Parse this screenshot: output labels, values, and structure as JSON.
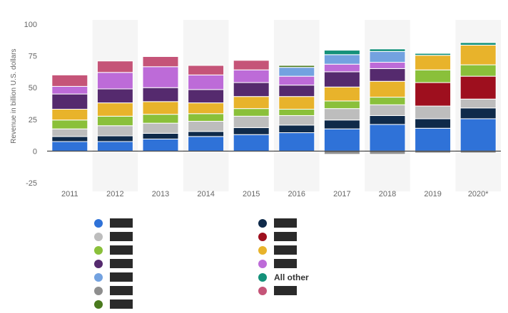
{
  "chart_data": {
    "type": "bar",
    "stacked": true,
    "title": "",
    "xlabel": "",
    "ylabel": "Revenue in billion U.S. dollars",
    "ylim": [
      -25,
      100
    ],
    "yticks": [
      100,
      75,
      50,
      25,
      0,
      -25
    ],
    "grid": false,
    "legend_position": "bottom",
    "categories": [
      "2011",
      "2012",
      "2013",
      "2014",
      "2015",
      "2016",
      "2017",
      "2018",
      "2019",
      "2020*"
    ],
    "series": [
      {
        "name": "",
        "color": "#2f72d8",
        "values": [
          7.5,
          7.5,
          9.5,
          11.5,
          13,
          14.5,
          17.5,
          21,
          18,
          25.5
        ]
      },
      {
        "name": "",
        "color": "#0f2a4a",
        "values": [
          4,
          4.5,
          4.5,
          4,
          5.5,
          6,
          7,
          7,
          7.5,
          8.5
        ]
      },
      {
        "name": "",
        "color": "#bdbdbd",
        "values": [
          6,
          8,
          8,
          8,
          9,
          7.5,
          9,
          8.5,
          10,
          7
        ]
      },
      {
        "name": "",
        "color": "#8ac03a",
        "values": [
          7,
          7.5,
          7,
          6,
          6,
          5,
          6,
          6,
          0,
          0
        ]
      },
      {
        "name": "",
        "color": "#e8b32b",
        "values": [
          8.5,
          10.5,
          10,
          8.5,
          9.5,
          10,
          11,
          12.5,
          0,
          0
        ]
      },
      {
        "name": "",
        "color": "#9e0f1e",
        "values": [
          0,
          0,
          0,
          0,
          0,
          0,
          0,
          0,
          18.5,
          18
        ]
      },
      {
        "name": "",
        "color": "#8ac03a",
        "values": [
          0,
          0,
          0,
          0,
          0,
          0,
          0,
          0,
          10,
          9
        ]
      },
      {
        "name": "",
        "color": "#e8b32b",
        "values": [
          0,
          0,
          0,
          0,
          0,
          0,
          0,
          0,
          11.5,
          15.5
        ]
      },
      {
        "name": "",
        "color": "#552a6e",
        "values": [
          12,
          11,
          11,
          10.5,
          11,
          9,
          12,
          10,
          0,
          0
        ]
      },
      {
        "name": "",
        "color": "#bd6bd8",
        "values": [
          6,
          13,
          16.5,
          11.5,
          10,
          7,
          6,
          5,
          0,
          0
        ]
      },
      {
        "name": "",
        "color": "#73a2e0",
        "values": [
          0,
          0,
          0,
          0,
          0,
          7,
          7.5,
          8.5,
          0,
          0
        ]
      },
      {
        "name": "",
        "color": "#4a7a1e",
        "values": [
          0,
          0,
          0,
          0,
          0,
          1.5,
          0,
          0,
          0,
          0
        ]
      },
      {
        "name": "All other",
        "color": "#14917a",
        "values": [
          0,
          0,
          0,
          0,
          0,
          0,
          3.5,
          2,
          1.5,
          2
        ]
      },
      {
        "name": "",
        "color": "#c55478",
        "values": [
          9,
          9,
          8,
          7.5,
          7.5,
          0,
          0,
          0,
          0,
          0
        ]
      },
      {
        "name": "",
        "color": "#8e8e8e",
        "values": [
          0,
          0,
          0,
          0,
          0,
          0,
          -2.5,
          -2.5,
          -1.5,
          -1.5
        ]
      }
    ]
  },
  "legend": {
    "left": [
      {
        "color": "#2f72d8",
        "label": ""
      },
      {
        "color": "#bdbdbd",
        "label": ""
      },
      {
        "color": "#8ac03a",
        "label": ""
      },
      {
        "color": "#552a6e",
        "label": ""
      },
      {
        "color": "#73a2e0",
        "label": ""
      },
      {
        "color": "#8e8e8e",
        "label": ""
      },
      {
        "color": "#4a7a1e",
        "label": ""
      }
    ],
    "right": [
      {
        "color": "#0f2a4a",
        "label": ""
      },
      {
        "color": "#9e0f1e",
        "label": ""
      },
      {
        "color": "#e8b32b",
        "label": ""
      },
      {
        "color": "#bd6bd8",
        "label": ""
      },
      {
        "color": "#14917a",
        "label": "All other"
      },
      {
        "color": "#c55478",
        "label": ""
      }
    ]
  }
}
